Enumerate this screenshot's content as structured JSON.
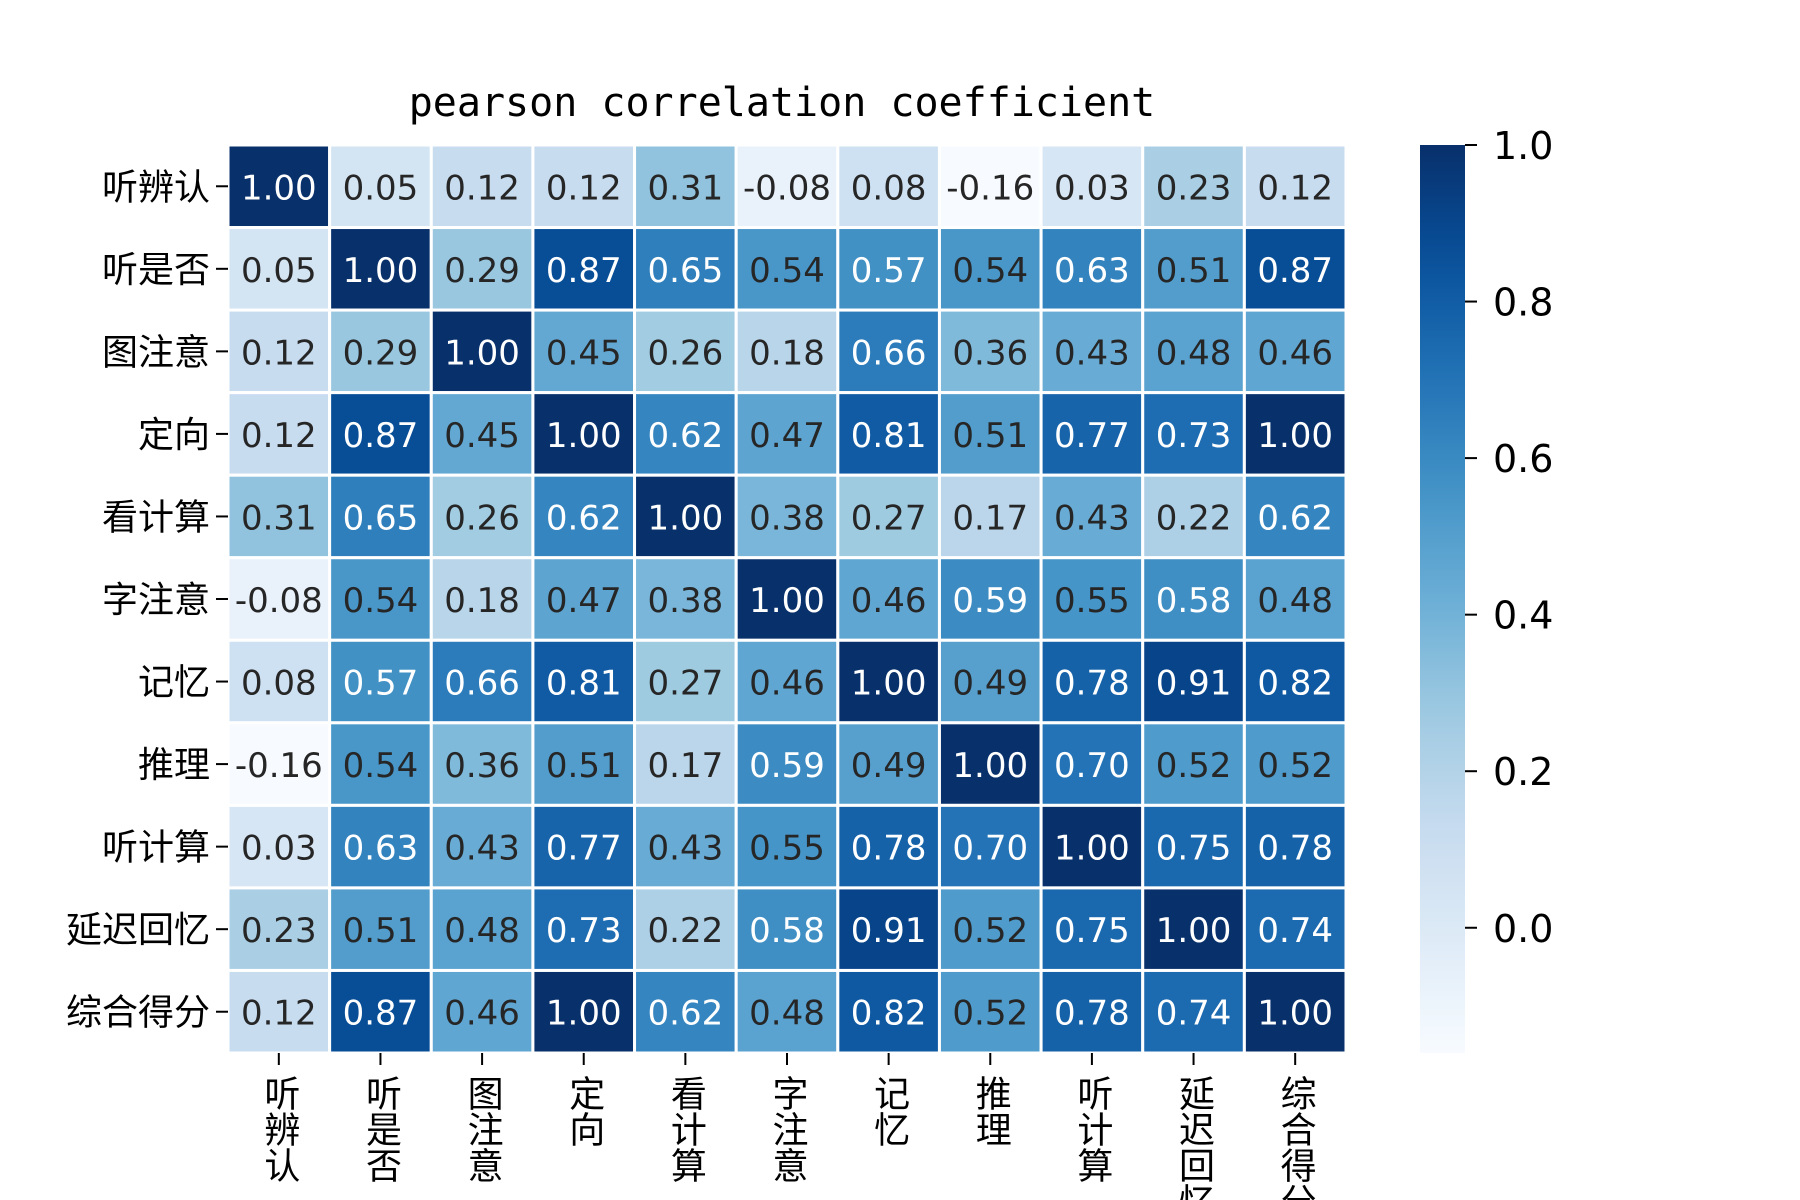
{
  "chart_data": {
    "type": "heatmap",
    "title": "pearson correlation coefficient",
    "rows": [
      "听辨认",
      "听是否",
      "图注意",
      "定向",
      "看计算",
      "字注意",
      "记忆",
      "推理",
      "听计算",
      "延迟回忆",
      "综合得分"
    ],
    "columns": [
      "听辨认",
      "听是否",
      "图注意",
      "定向",
      "看计算",
      "字注意",
      "记忆",
      "推理",
      "听计算",
      "延迟回忆",
      "综合得分"
    ],
    "values": [
      [
        1.0,
        0.05,
        0.12,
        0.12,
        0.31,
        -0.08,
        0.08,
        -0.16,
        0.03,
        0.23,
        0.12
      ],
      [
        0.05,
        1.0,
        0.29,
        0.87,
        0.65,
        0.54,
        0.57,
        0.54,
        0.63,
        0.51,
        0.87
      ],
      [
        0.12,
        0.29,
        1.0,
        0.45,
        0.26,
        0.18,
        0.66,
        0.36,
        0.43,
        0.48,
        0.46
      ],
      [
        0.12,
        0.87,
        0.45,
        1.0,
        0.62,
        0.47,
        0.81,
        0.51,
        0.77,
        0.73,
        1.0
      ],
      [
        0.31,
        0.65,
        0.26,
        0.62,
        1.0,
        0.38,
        0.27,
        0.17,
        0.43,
        0.22,
        0.62
      ],
      [
        -0.08,
        0.54,
        0.18,
        0.47,
        0.38,
        1.0,
        0.46,
        0.59,
        0.55,
        0.58,
        0.48
      ],
      [
        0.08,
        0.57,
        0.66,
        0.81,
        0.27,
        0.46,
        1.0,
        0.49,
        0.78,
        0.91,
        0.82
      ],
      [
        -0.16,
        0.54,
        0.36,
        0.51,
        0.17,
        0.59,
        0.49,
        1.0,
        0.7,
        0.52,
        0.52
      ],
      [
        0.03,
        0.63,
        0.43,
        0.77,
        0.43,
        0.55,
        0.78,
        0.7,
        1.0,
        0.75,
        0.78
      ],
      [
        0.23,
        0.51,
        0.48,
        0.73,
        0.22,
        0.58,
        0.91,
        0.52,
        0.75,
        1.0,
        0.74
      ],
      [
        0.12,
        0.87,
        0.46,
        1.0,
        0.62,
        0.48,
        0.82,
        0.52,
        0.78,
        0.74,
        1.0
      ]
    ],
    "value_format": "0.00",
    "colormap": "Blues",
    "vmin": -0.16,
    "vmax": 1.0,
    "colorbar": {
      "ticks": [
        0.0,
        0.2,
        0.4,
        0.6,
        0.8,
        1.0
      ],
      "tick_labels": [
        "0.0",
        "0.2",
        "0.4",
        "0.6",
        "0.8",
        "1.0"
      ]
    },
    "cell_border_color": "#ffffff",
    "xtick_rotation": "vertical"
  }
}
